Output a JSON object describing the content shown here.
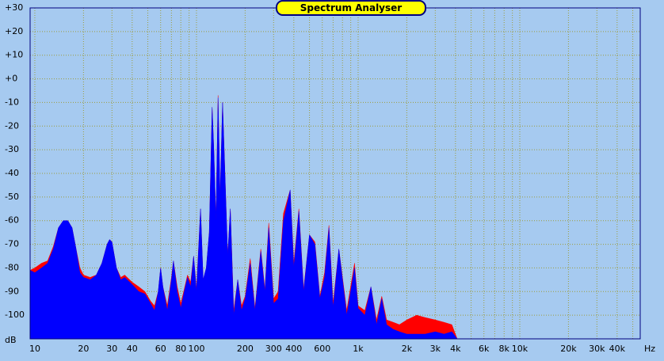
{
  "chart_data": {
    "type": "area",
    "title": "Spectrum Analyser",
    "x_label": "Hz",
    "y_label": "dB",
    "log_x": true,
    "grid": true,
    "background": "#a6caf0",
    "grid_color": "#9c9c3c",
    "x": [
      9.35,
      10,
      11,
      12,
      13,
      14,
      15,
      16,
      17,
      18,
      19,
      20,
      22,
      24,
      26,
      28,
      29,
      30,
      32,
      34,
      36,
      40,
      44,
      48,
      52,
      55,
      58,
      60,
      62,
      66,
      70,
      72,
      76,
      80,
      84,
      88,
      92,
      96,
      100,
      106,
      110,
      115,
      120,
      125,
      128,
      132,
      136,
      140,
      145,
      150,
      156,
      162,
      170,
      180,
      190,
      200,
      215,
      230,
      250,
      265,
      280,
      300,
      320,
      345,
      380,
      400,
      430,
      460,
      500,
      540,
      580,
      620,
      660,
      700,
      760,
      850,
      950,
      1000,
      1100,
      1200,
      1300,
      1400,
      1500,
      1650,
      1800,
      2000,
      2300,
      2600,
      3000,
      3400,
      3800,
      4100
    ],
    "series": [
      {
        "color": "#ff0000",
        "values": [
          -81,
          -80,
          -78,
          -77,
          -71,
          -63,
          -60,
          -60,
          -63,
          -72,
          -80,
          -83,
          -84,
          -83,
          -78,
          -70,
          -68,
          -69,
          -80,
          -84,
          -83,
          -86,
          -88,
          -90,
          -94,
          -96,
          -90,
          -80,
          -88,
          -96,
          -84,
          -77,
          -88,
          -95,
          -89,
          -83,
          -86,
          -75,
          -89,
          -55,
          -85,
          -80,
          -65,
          -12,
          -30,
          -60,
          -7,
          -50,
          -10,
          -40,
          -75,
          -55,
          -98,
          -85,
          -96,
          -92,
          -76,
          -97,
          -72,
          -89,
          -61,
          -93,
          -90,
          -57,
          -47,
          -78,
          -55,
          -89,
          -66,
          -69,
          -92,
          -82,
          -62,
          -95,
          -72,
          -98,
          -78,
          -96,
          -98,
          -88,
          -102,
          -92,
          -102,
          -103,
          -104,
          -102,
          -100,
          -101,
          -102,
          -103,
          -104,
          -110
        ]
      },
      {
        "color": "#0000ff",
        "values": [
          -81,
          -82,
          -80,
          -78,
          -72,
          -63,
          -60,
          -60,
          -63,
          -72,
          -82,
          -84,
          -85,
          -83,
          -78,
          -70,
          -68,
          -69,
          -80,
          -85,
          -84,
          -87,
          -90,
          -91,
          -95,
          -98,
          -90,
          -80,
          -88,
          -98,
          -85,
          -77,
          -90,
          -97,
          -90,
          -84,
          -88,
          -75,
          -90,
          -55,
          -85,
          -80,
          -65,
          -12,
          -30,
          -60,
          -8,
          -50,
          -10,
          -40,
          -75,
          -55,
          -100,
          -85,
          -98,
          -93,
          -78,
          -98,
          -73,
          -90,
          -63,
          -95,
          -93,
          -60,
          -47,
          -80,
          -56,
          -90,
          -66,
          -70,
          -93,
          -84,
          -63,
          -97,
          -72,
          -100,
          -80,
          -97,
          -100,
          -88,
          -104,
          -93,
          -104,
          -106,
          -107,
          -108,
          -108,
          -108,
          -107,
          -108,
          -107,
          -110
        ]
      }
    ],
    "xlim": [
      9.35,
      55600
    ],
    "ylim": [
      -110,
      30
    ],
    "xticks": [
      10,
      20,
      30,
      40,
      60,
      80,
      100,
      200,
      300,
      400,
      600,
      {
        "value": 1000,
        "label": "1k"
      },
      {
        "value": 2000,
        "label": "2k"
      },
      {
        "value": 3000,
        "label": "3k"
      },
      {
        "value": 4000,
        "label": "4k"
      },
      {
        "value": 6000,
        "label": "6k"
      },
      {
        "value": 8000,
        "label": "8k"
      },
      {
        "value": 10000,
        "label": "10k"
      },
      {
        "value": 20000,
        "label": "20k"
      },
      {
        "value": 30000,
        "label": "30k"
      },
      {
        "value": 40000,
        "label": "40k"
      }
    ],
    "x_minor_ticks": [
      50,
      70,
      90,
      500,
      700,
      800,
      900,
      5000,
      7000,
      9000,
      50000
    ],
    "yticks": [
      {
        "value": 30,
        "label": "+30"
      },
      {
        "value": 20,
        "label": "+20"
      },
      {
        "value": 10,
        "label": "+10"
      },
      {
        "value": 0,
        "label": "+0"
      },
      -10,
      -20,
      -30,
      -40,
      -50,
      -60,
      -70,
      -80,
      -90,
      -100
    ]
  }
}
